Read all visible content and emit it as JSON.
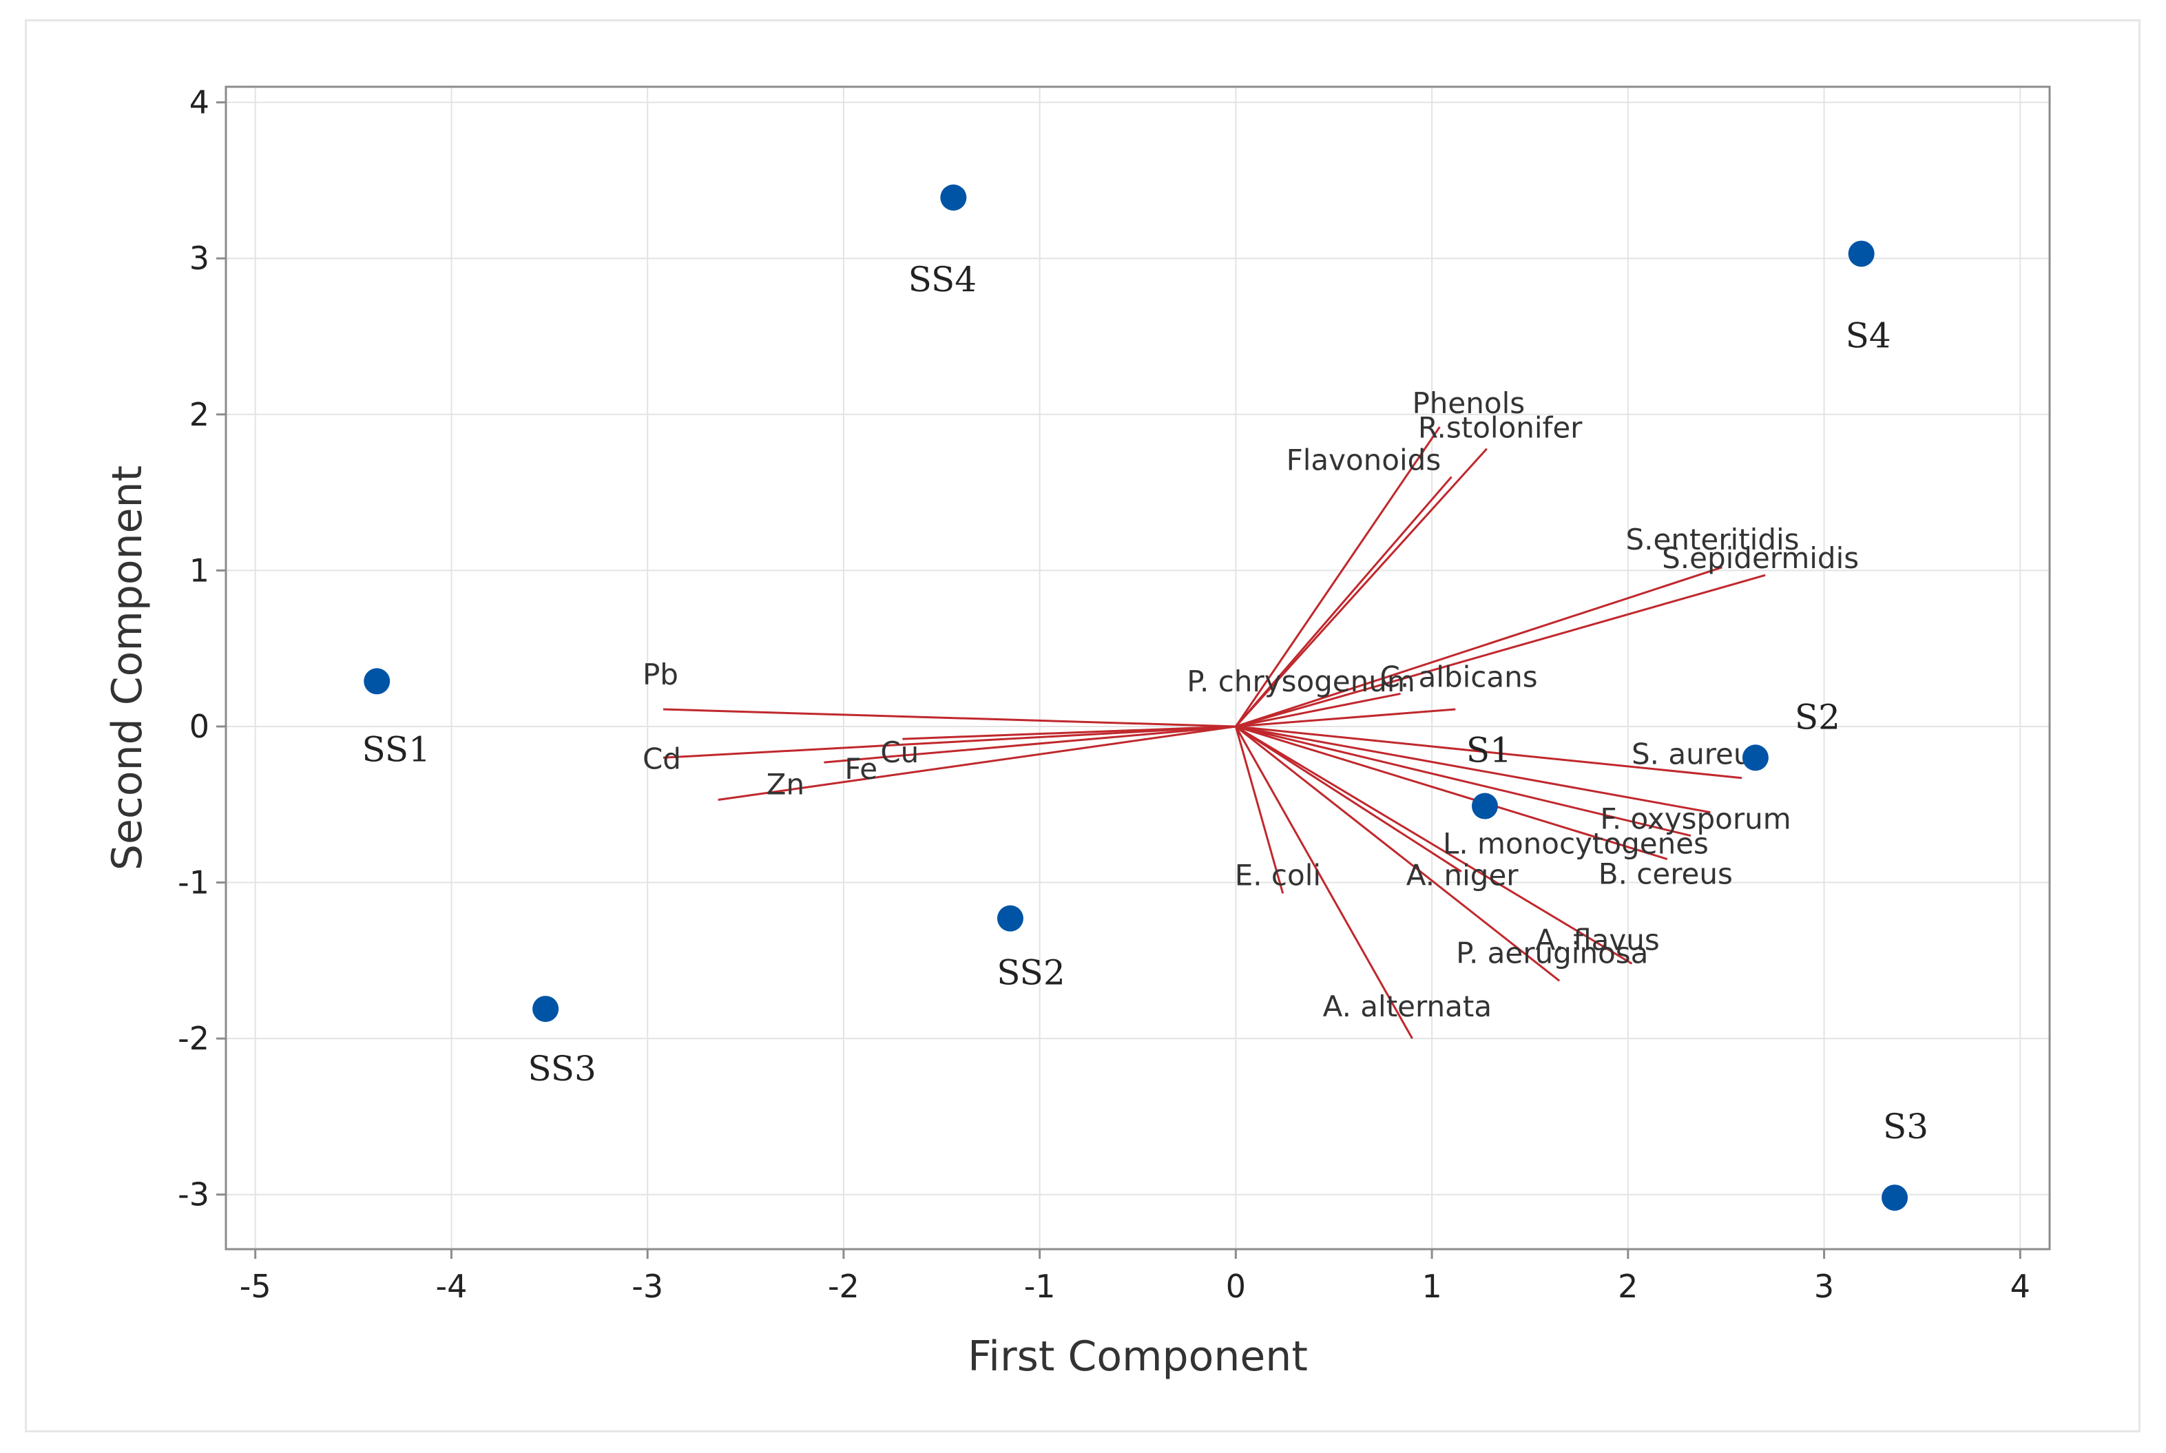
{
  "chart_data": {
    "type": "scatter",
    "subtype": "biplot",
    "xlabel": "First Component",
    "ylabel": "Second Component",
    "xlim": [
      -5.15,
      4.15
    ],
    "ylim": [
      -3.35,
      4.1
    ],
    "xticks": [
      -5,
      -4,
      -3,
      -2,
      -1,
      0,
      1,
      2,
      3,
      4
    ],
    "yticks": [
      -3,
      -2,
      -1,
      0,
      1,
      2,
      3,
      4
    ],
    "grid": true,
    "colors": {
      "points": "#0054a6",
      "vectors": "#c0282d",
      "grid": "#e3e3e3",
      "axis": "#8c8c8c"
    },
    "samples": [
      {
        "label": "SS1",
        "x": -4.38,
        "y": 0.29
      },
      {
        "label": "SS4",
        "x": -1.44,
        "y": 3.39
      },
      {
        "label": "SS3",
        "x": -3.52,
        "y": -1.81
      },
      {
        "label": "SS2",
        "x": -1.15,
        "y": -1.23
      },
      {
        "label": "S1",
        "x": 1.27,
        "y": -0.51
      },
      {
        "label": "S2",
        "x": 2.65,
        "y": -0.2
      },
      {
        "label": "S4",
        "x": 3.19,
        "y": 3.03
      },
      {
        "label": "S3",
        "x": 3.36,
        "y": -3.02
      }
    ],
    "loadings": [
      {
        "label": "Phenols",
        "x": 1.04,
        "y": 1.92
      },
      {
        "label": "R.stolonifer",
        "x": 1.28,
        "y": 1.78
      },
      {
        "label": "Flavonoids",
        "x": 1.1,
        "y": 1.6
      },
      {
        "label": "S.enteritidis",
        "x": 2.48,
        "y": 1.02
      },
      {
        "label": "S.epidermidis",
        "x": 2.7,
        "y": 0.97
      },
      {
        "label": "P. chrysogenum",
        "x": 1.12,
        "y": 0.11
      },
      {
        "label": "C. albicans",
        "x": 0.84,
        "y": 0.21
      },
      {
        "label": "Pb",
        "x": -2.92,
        "y": 0.11
      },
      {
        "label": "Cd",
        "x": -2.92,
        "y": -0.2
      },
      {
        "label": "Fe",
        "x": -2.1,
        "y": -0.23
      },
      {
        "label": "Cu",
        "x": -1.7,
        "y": -0.08
      },
      {
        "label": "Zn",
        "x": -2.64,
        "y": -0.47
      },
      {
        "label": "S. aureus",
        "x": 2.58,
        "y": -0.33
      },
      {
        "label": "F. oxysporum",
        "x": 2.42,
        "y": -0.55
      },
      {
        "label": "L. monocytogenes",
        "x": 2.32,
        "y": -0.7
      },
      {
        "label": "B. cereus",
        "x": 2.2,
        "y": -0.85
      },
      {
        "label": "A. niger",
        "x": 1.15,
        "y": -0.93
      },
      {
        "label": "E. coli",
        "x": 0.24,
        "y": -1.07
      },
      {
        "label": "A. flavus",
        "x": 2.02,
        "y": -1.52
      },
      {
        "label": "P. aeruginosa",
        "x": 1.65,
        "y": -1.63
      },
      {
        "label": "A. alternata",
        "x": 0.9,
        "y": -2.0
      }
    ]
  }
}
